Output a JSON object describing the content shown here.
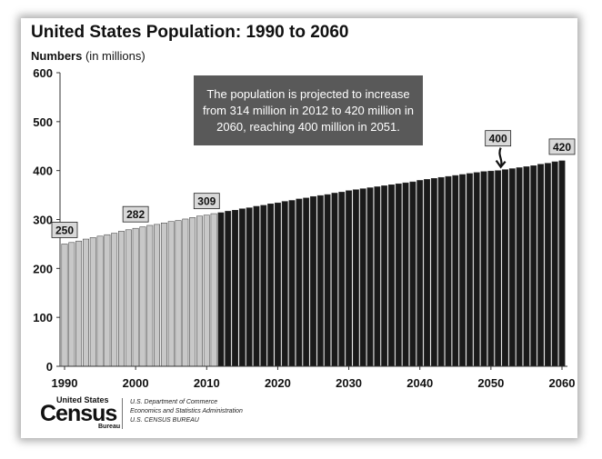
{
  "title": "United States Population: 1990 to 2060",
  "units_bold": "Numbers",
  "units_rest": " (in millions)",
  "callout": "The population is projected to increase from 314 million in 2012 to 420 million in 2060, reaching 400 million in 2051.",
  "logo": {
    "top": "United States",
    "main": "Census",
    "sub": "Bureau"
  },
  "agency": [
    "U.S. Department of Commerce",
    "Economics and Statistics Administration",
    "U.S. CENSUS BUREAU"
  ],
  "colors": {
    "historical": "#c8c8c8",
    "projected": "#1a1a1a",
    "callout_bg": "#595959",
    "label_bg": "#d9d9d9"
  },
  "chart_data": {
    "type": "bar",
    "title": "United States Population: 1990 to 2060",
    "ylabel": "Numbers (in millions)",
    "ylim": [
      0,
      600
    ],
    "yticks": [
      "0",
      "100",
      "200",
      "300",
      "400",
      "500",
      "600"
    ],
    "xticks": [
      "1990",
      "2000",
      "2010",
      "2020",
      "2030",
      "2040",
      "2050",
      "2060"
    ],
    "grid": false,
    "series": [
      {
        "name": "historical",
        "x": [
          1990,
          1991,
          1992,
          1993,
          1994,
          1995,
          1996,
          1997,
          1998,
          1999,
          2000,
          2001,
          2002,
          2003,
          2004,
          2005,
          2006,
          2007,
          2008,
          2009,
          2010,
          2011
        ],
        "values": [
          250,
          253,
          256,
          260,
          263,
          266,
          269,
          272,
          276,
          279,
          282,
          285,
          288,
          290,
          293,
          296,
          298,
          301,
          304,
          307,
          309,
          312
        ]
      },
      {
        "name": "projected",
        "x": [
          2012,
          2013,
          2014,
          2015,
          2016,
          2017,
          2018,
          2019,
          2020,
          2021,
          2022,
          2023,
          2024,
          2025,
          2026,
          2027,
          2028,
          2029,
          2030,
          2031,
          2032,
          2033,
          2034,
          2035,
          2036,
          2037,
          2038,
          2039,
          2040,
          2041,
          2042,
          2043,
          2044,
          2045,
          2046,
          2047,
          2048,
          2049,
          2050,
          2051,
          2052,
          2053,
          2054,
          2055,
          2056,
          2057,
          2058,
          2059,
          2060
        ],
        "values": [
          314,
          317,
          319,
          322,
          324,
          327,
          329,
          332,
          334,
          337,
          339,
          342,
          344,
          347,
          349,
          351,
          354,
          356,
          359,
          361,
          363,
          365,
          367,
          369,
          371,
          373,
          375,
          377,
          380,
          382,
          384,
          386,
          388,
          390,
          392,
          394,
          396,
          398,
          399,
          400,
          402,
          404,
          406,
          408,
          410,
          413,
          415,
          418,
          420
        ]
      }
    ],
    "annotations": [
      {
        "x": 1990,
        "label": "250"
      },
      {
        "x": 2000,
        "label": "282"
      },
      {
        "x": 2010,
        "label": "309"
      },
      {
        "x": 2051,
        "label": "400"
      },
      {
        "x": 2060,
        "label": "420"
      }
    ]
  }
}
